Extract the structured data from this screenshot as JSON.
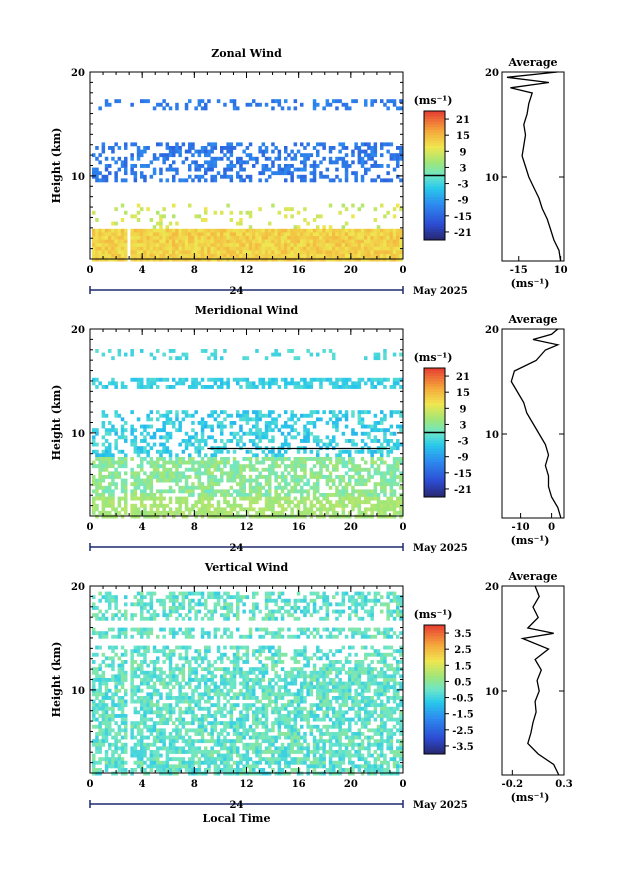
{
  "chart_data": [
    {
      "type": "heatmap",
      "title": "Zonal Wind",
      "ylabel": "Height (km)",
      "xlabel": "",
      "ylim": [
        2,
        20
      ],
      "xlim": [
        0,
        24
      ],
      "x_ticks": [
        "0",
        "4",
        "8",
        "12",
        "16",
        "20",
        "0"
      ],
      "y_ticks": [
        "20",
        "10"
      ],
      "date_label": "24",
      "month_label": "May 2025",
      "colorbar": {
        "unit": "(ms⁻¹)",
        "ticks": [
          "21",
          "15",
          "9",
          "3",
          "-3",
          "-9",
          "-15",
          "-21"
        ],
        "range": [
          -24,
          24
        ],
        "marker_value": 0
      },
      "profile_title": "Average",
      "profile_xticks": [
        "-15",
        "10"
      ],
      "profile_xlim": [
        -25,
        12
      ],
      "profile_unit": "(ms⁻¹)",
      "profile": [
        {
          "h": 2.0,
          "v": 10
        },
        {
          "h": 3.0,
          "v": 9
        },
        {
          "h": 4.0,
          "v": 6
        },
        {
          "h": 5.0,
          "v": 4
        },
        {
          "h": 6.0,
          "v": 2
        },
        {
          "h": 7.0,
          "v": -1
        },
        {
          "h": 8.0,
          "v": -3
        },
        {
          "h": 9.0,
          "v": -6
        },
        {
          "h": 10.0,
          "v": -9
        },
        {
          "h": 11.0,
          "v": -11
        },
        {
          "h": 12.0,
          "v": -13
        },
        {
          "h": 13.0,
          "v": -12
        },
        {
          "h": 14.0,
          "v": -11
        },
        {
          "h": 15.0,
          "v": -12
        },
        {
          "h": 16.0,
          "v": -10
        },
        {
          "h": 17.0,
          "v": -9
        },
        {
          "h": 18.0,
          "v": -7
        },
        {
          "h": 18.5,
          "v": -20
        },
        {
          "h": 19.0,
          "v": 3
        },
        {
          "h": 19.5,
          "v": -22
        },
        {
          "h": 20.0,
          "v": 8
        }
      ]
    },
    {
      "type": "heatmap",
      "title": "Meridional Wind",
      "ylabel": "Height (km)",
      "xlabel": "",
      "ylim": [
        2,
        20
      ],
      "xlim": [
        0,
        24
      ],
      "x_ticks": [
        "0",
        "4",
        "8",
        "12",
        "16",
        "20",
        "0"
      ],
      "y_ticks": [
        "20",
        "10"
      ],
      "date_label": "24",
      "month_label": "May 2025",
      "colorbar": {
        "unit": "(ms⁻¹)",
        "ticks": [
          "21",
          "15",
          "9",
          "3",
          "-3",
          "-9",
          "-15",
          "-21"
        ],
        "range": [
          -24,
          24
        ],
        "marker_value": 0
      },
      "profile_title": "Average",
      "profile_xticks": [
        "-10",
        "0"
      ],
      "profile_xlim": [
        -16,
        4
      ],
      "profile_unit": "(ms⁻¹)",
      "profile": [
        {
          "h": 2.0,
          "v": 3
        },
        {
          "h": 3.0,
          "v": 2
        },
        {
          "h": 4.0,
          "v": 0
        },
        {
          "h": 5.0,
          "v": -1
        },
        {
          "h": 6.0,
          "v": -1
        },
        {
          "h": 7.0,
          "v": -2
        },
        {
          "h": 8.0,
          "v": -1
        },
        {
          "h": 9.0,
          "v": -2
        },
        {
          "h": 10.0,
          "v": -4
        },
        {
          "h": 11.0,
          "v": -6
        },
        {
          "h": 12.0,
          "v": -8
        },
        {
          "h": 13.0,
          "v": -9
        },
        {
          "h": 14.0,
          "v": -11
        },
        {
          "h": 15.0,
          "v": -13
        },
        {
          "h": 16.0,
          "v": -12
        },
        {
          "h": 17.0,
          "v": -5
        },
        {
          "h": 18.0,
          "v": -2
        },
        {
          "h": 18.5,
          "v": 2
        },
        {
          "h": 19.0,
          "v": -6
        },
        {
          "h": 19.5,
          "v": 0
        },
        {
          "h": 20.0,
          "v": 2
        }
      ]
    },
    {
      "type": "heatmap",
      "title": "Vertical Wind",
      "ylabel": "Height (km)",
      "xlabel": "Local Time",
      "ylim": [
        2,
        20
      ],
      "xlim": [
        0,
        24
      ],
      "x_ticks": [
        "0",
        "4",
        "8",
        "12",
        "16",
        "20",
        "0"
      ],
      "y_ticks": [
        "20",
        "10"
      ],
      "date_label": "24",
      "month_label": "May 2025",
      "colorbar": {
        "unit": "(ms⁻¹)",
        "ticks": [
          "3.5",
          "2.5",
          "1.5",
          "0.5",
          "-0.5",
          "-1.5",
          "-2.5",
          "-3.5"
        ],
        "range": [
          -4,
          4
        ],
        "marker_value": null
      },
      "profile_title": "Average",
      "profile_xticks": [
        "-0.2",
        "0.3"
      ],
      "profile_xlim": [
        -0.3,
        0.3
      ],
      "profile_unit": "(ms⁻¹)",
      "profile": [
        {
          "h": 2.0,
          "v": 0.25
        },
        {
          "h": 3.0,
          "v": 0.2
        },
        {
          "h": 4.0,
          "v": 0.05
        },
        {
          "h": 5.0,
          "v": -0.05
        },
        {
          "h": 6.0,
          "v": -0.02
        },
        {
          "h": 7.0,
          "v": 0.0
        },
        {
          "h": 8.0,
          "v": 0.03
        },
        {
          "h": 9.0,
          "v": 0.02
        },
        {
          "h": 10.0,
          "v": 0.06
        },
        {
          "h": 11.0,
          "v": 0.04
        },
        {
          "h": 12.0,
          "v": 0.08
        },
        {
          "h": 13.0,
          "v": 0.02
        },
        {
          "h": 14.0,
          "v": 0.15
        },
        {
          "h": 15.0,
          "v": -0.1
        },
        {
          "h": 15.5,
          "v": 0.2
        },
        {
          "h": 16.0,
          "v": -0.05
        },
        {
          "h": 17.0,
          "v": 0.05
        },
        {
          "h": 18.0,
          "v": 0.0
        },
        {
          "h": 19.0,
          "v": 0.06
        },
        {
          "h": 20.0,
          "v": 0.02
        }
      ]
    }
  ]
}
